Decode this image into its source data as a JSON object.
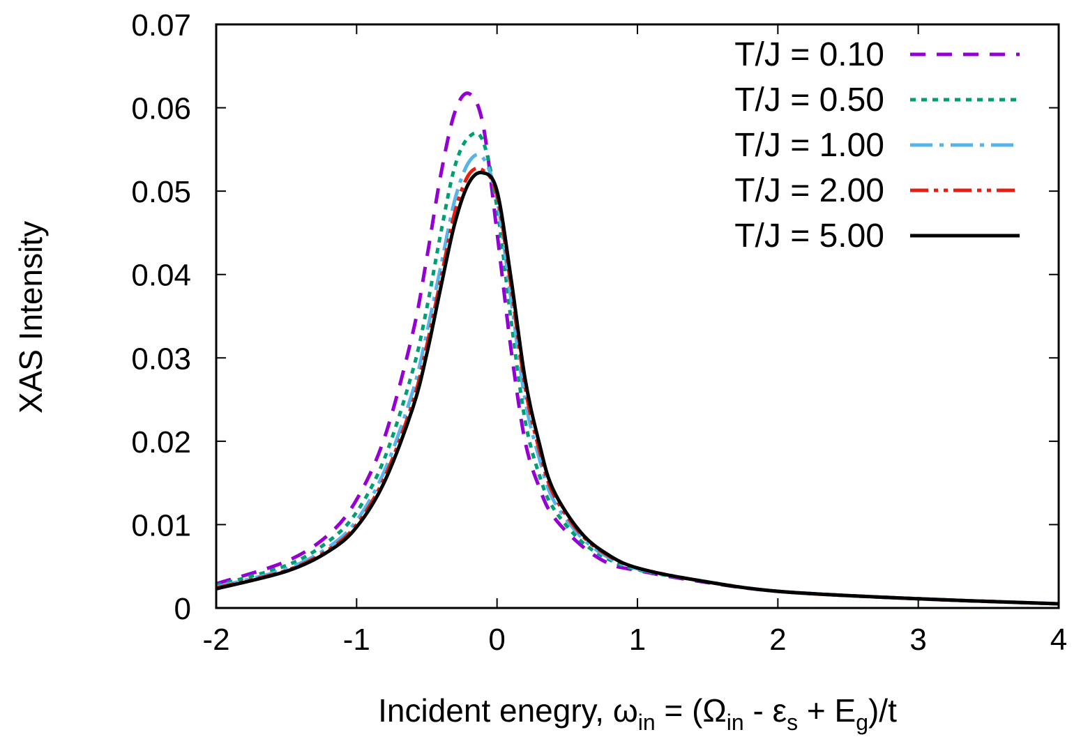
{
  "chart_data": {
    "type": "line",
    "title": "",
    "ylabel": "XAS Intensity",
    "xlabel_parts": {
      "prefix": "Incident enegry, ω",
      "sub1": "in",
      "mid1": " = (Ω",
      "sub2": "in",
      "mid2": " - ε",
      "sub3": "s",
      "mid3": " + E",
      "sub4": "g",
      "suffix": ")/t"
    },
    "xlim": [
      -2,
      4
    ],
    "ylim": [
      0,
      0.07
    ],
    "xticks": [
      -2,
      -1,
      0,
      1,
      2,
      3,
      4
    ],
    "xtick_labels": [
      "-2",
      "-1",
      "0",
      "1",
      "2",
      "3",
      "4"
    ],
    "yticks": [
      0,
      0.01,
      0.02,
      0.03,
      0.04,
      0.05,
      0.06,
      0.07
    ],
    "ytick_labels": [
      "0",
      "0.01",
      "0.02",
      "0.03",
      "0.04",
      "0.05",
      "0.06",
      "0.07"
    ],
    "grid": false,
    "legend_position": "top-right",
    "x": [
      -2.0,
      -1.5,
      -1.2,
      -1.0,
      -0.8,
      -0.6,
      -0.5,
      -0.4,
      -0.3,
      -0.2,
      -0.1,
      0.0,
      0.1,
      0.2,
      0.3,
      0.4,
      0.6,
      0.8,
      1.0,
      1.4,
      2.0,
      3.0,
      4.0
    ],
    "series": [
      {
        "name": "T/J = 0.10",
        "color": "#9400d3",
        "dash": "22,16",
        "values": [
          0.0029,
          0.0056,
          0.0088,
          0.013,
          0.0205,
          0.033,
          0.042,
          0.052,
          0.0595,
          0.0617,
          0.058,
          0.045,
          0.031,
          0.02,
          0.0145,
          0.011,
          0.0075,
          0.0053,
          0.0045,
          0.0033,
          0.002,
          0.0011,
          0.0005
        ]
      },
      {
        "name": "T/J = 0.50",
        "color": "#009e73",
        "dash": "8,8",
        "values": [
          0.0027,
          0.0051,
          0.008,
          0.0115,
          0.018,
          0.0285,
          0.036,
          0.045,
          0.053,
          0.0565,
          0.056,
          0.048,
          0.0345,
          0.0225,
          0.016,
          0.012,
          0.008,
          0.0058,
          0.0046,
          0.0034,
          0.002,
          0.0011,
          0.0005
        ]
      },
      {
        "name": "T/J = 1.00",
        "color": "#56b4e9",
        "dash": "32,10,6,10",
        "values": [
          0.0025,
          0.0047,
          0.0073,
          0.0105,
          0.0165,
          0.026,
          0.033,
          0.041,
          0.049,
          0.0535,
          0.054,
          0.049,
          0.037,
          0.025,
          0.018,
          0.013,
          0.0085,
          0.006,
          0.0047,
          0.0034,
          0.002,
          0.0011,
          0.0005
        ]
      },
      {
        "name": "T/J = 2.00",
        "color": "#e51e10",
        "dash": "26,8,6,8,6,8",
        "values": [
          0.0024,
          0.0045,
          0.007,
          0.01,
          0.0157,
          0.0247,
          0.0315,
          0.0395,
          0.0475,
          0.052,
          0.0525,
          0.0495,
          0.0385,
          0.0265,
          0.019,
          0.0137,
          0.0088,
          0.0062,
          0.0048,
          0.0034,
          0.002,
          0.0011,
          0.0005
        ]
      },
      {
        "name": "T/J = 5.00",
        "color": "#000000",
        "dash": "",
        "values": [
          0.0023,
          0.0044,
          0.0068,
          0.0097,
          0.0152,
          0.024,
          0.0305,
          0.0385,
          0.0462,
          0.051,
          0.0522,
          0.05,
          0.0395,
          0.0275,
          0.0198,
          0.0142,
          0.009,
          0.0063,
          0.0048,
          0.0034,
          0.002,
          0.0011,
          0.0005
        ]
      }
    ]
  }
}
